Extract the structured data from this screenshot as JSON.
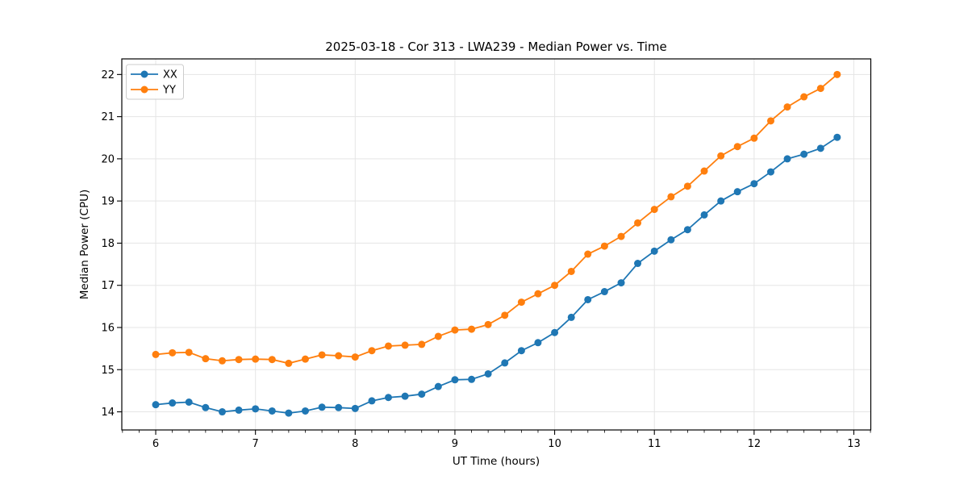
{
  "chart_data": {
    "type": "line",
    "title": "2025-03-18 - Cor 313 - LWA239 - Median Power vs. Time",
    "xlabel": "UT Time (hours)",
    "ylabel": "Median Power (CPU)",
    "xlim": [
      5.66,
      13.17
    ],
    "ylim": [
      13.57,
      22.37
    ],
    "x_major_ticks": [
      6,
      7,
      8,
      9,
      10,
      11,
      12,
      13
    ],
    "x_minor_step": 0.1667,
    "y_major_ticks": [
      14,
      15,
      16,
      17,
      18,
      19,
      20,
      21,
      22
    ],
    "grid": true,
    "grid_color": "#e5e5e5",
    "axis_color": "#000000",
    "legend_position": "upper-left",
    "x": [
      6,
      6.167,
      6.333,
      6.5,
      6.667,
      6.833,
      7,
      7.167,
      7.333,
      7.5,
      7.667,
      7.833,
      8,
      8.167,
      8.333,
      8.5,
      8.667,
      8.833,
      9,
      9.167,
      9.333,
      9.5,
      9.667,
      9.833,
      10,
      10.167,
      10.333,
      10.5,
      10.667,
      10.833,
      11,
      11.167,
      11.333,
      11.5,
      11.667,
      11.833,
      12,
      12.167,
      12.333,
      12.5,
      12.667,
      12.833
    ],
    "series": [
      {
        "name": "XX",
        "color": "#1f77b4",
        "values": [
          14.17,
          14.21,
          14.23,
          14.1,
          14.0,
          14.04,
          14.07,
          14.02,
          13.97,
          14.02,
          14.11,
          14.1,
          14.08,
          14.26,
          14.34,
          14.37,
          14.42,
          14.6,
          14.76,
          14.77,
          14.9,
          15.16,
          15.45,
          15.64,
          15.88,
          16.24,
          16.66,
          16.85,
          17.06,
          17.52,
          17.81,
          18.08,
          18.32,
          18.67,
          19.0,
          19.22,
          19.41,
          19.69,
          20.0,
          20.11,
          20.25,
          20.51
        ]
      },
      {
        "name": "YY",
        "color": "#ff7f0e",
        "values": [
          15.36,
          15.4,
          15.41,
          15.26,
          15.21,
          15.24,
          15.25,
          15.24,
          15.15,
          15.25,
          15.35,
          15.33,
          15.3,
          15.45,
          15.56,
          15.58,
          15.6,
          15.79,
          15.94,
          15.96,
          16.07,
          16.29,
          16.6,
          16.8,
          17.0,
          17.33,
          17.74,
          17.93,
          18.16,
          18.48,
          18.8,
          19.1,
          19.35,
          19.71,
          20.07,
          20.29,
          20.49,
          20.9,
          21.23,
          21.47,
          21.67,
          22.0
        ]
      }
    ]
  }
}
